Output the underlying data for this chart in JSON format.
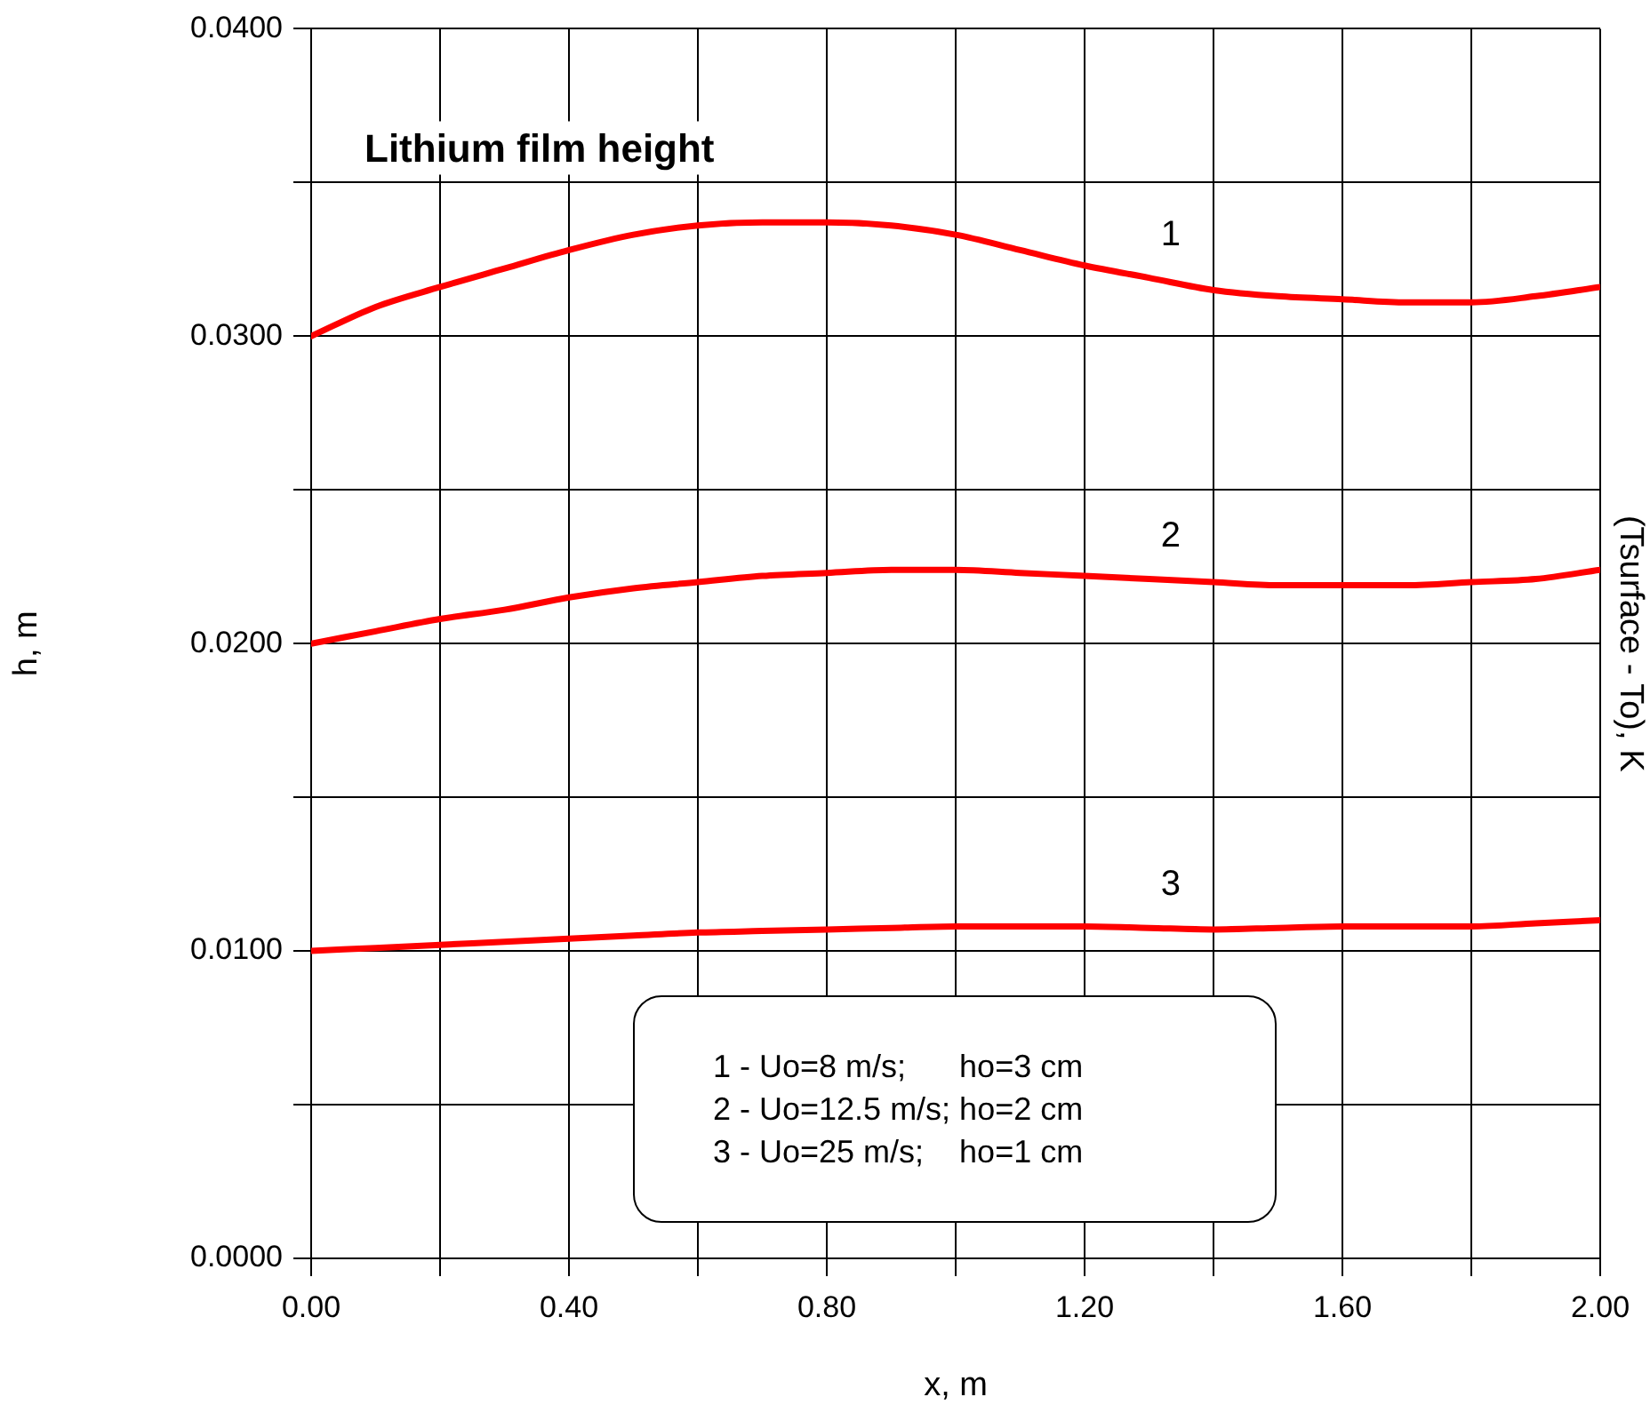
{
  "chart_data": {
    "type": "line",
    "title": "Lithium film height",
    "xlabel": "x, m",
    "ylabel": "h, m",
    "y2label": "(Tsurface - To), K",
    "x": [
      0,
      0.1,
      0.2,
      0.3,
      0.4,
      0.5,
      0.6,
      0.7,
      0.8,
      0.9,
      1.0,
      1.1,
      1.2,
      1.3,
      1.4,
      1.5,
      1.6,
      1.7,
      1.8,
      1.9,
      2.0
    ],
    "series": [
      {
        "name": "1",
        "color": "#ff0000",
        "values": [
          0.03,
          0.03095,
          0.0316,
          0.0322,
          0.0328,
          0.0333,
          0.0336,
          0.0337,
          0.0337,
          0.0336,
          0.0333,
          0.0328,
          0.0323,
          0.0319,
          0.0315,
          0.0313,
          0.0312,
          0.0311,
          0.0311,
          0.0313,
          0.0316
        ]
      },
      {
        "name": "2",
        "color": "#ff0000",
        "values": [
          0.02,
          0.0204,
          0.0208,
          0.0211,
          0.0215,
          0.0218,
          0.022,
          0.0222,
          0.0223,
          0.0224,
          0.0224,
          0.0223,
          0.0222,
          0.0221,
          0.022,
          0.0219,
          0.0219,
          0.0219,
          0.022,
          0.0221,
          0.0224
        ]
      },
      {
        "name": "3",
        "color": "#ff0000",
        "values": [
          0.01,
          0.0101,
          0.0102,
          0.0103,
          0.0104,
          0.0105,
          0.0106,
          0.01065,
          0.0107,
          0.01075,
          0.0108,
          0.0108,
          0.0108,
          0.01075,
          0.0107,
          0.01075,
          0.0108,
          0.0108,
          0.0108,
          0.0109,
          0.011
        ]
      }
    ],
    "xlim": [
      0,
      2.0
    ],
    "ylim": [
      0,
      0.04
    ],
    "xticks": [
      {
        "value": 0,
        "label": "0.00"
      },
      {
        "value": 0.2,
        "label": null
      },
      {
        "value": 0.4,
        "label": "0.40"
      },
      {
        "value": 0.6,
        "label": null
      },
      {
        "value": 0.8,
        "label": "0.80"
      },
      {
        "value": 1.0,
        "label": null
      },
      {
        "value": 1.2,
        "label": "1.20"
      },
      {
        "value": 1.4,
        "label": null
      },
      {
        "value": 1.6,
        "label": "1.60"
      },
      {
        "value": 1.8,
        "label": null
      },
      {
        "value": 2.0,
        "label": "2.00"
      }
    ],
    "yticks": [
      {
        "value": 0,
        "label": "0.0000"
      },
      {
        "value": 0.005,
        "label": null
      },
      {
        "value": 0.01,
        "label": "0.0100"
      },
      {
        "value": 0.015,
        "label": null
      },
      {
        "value": 0.02,
        "label": "0.0200"
      },
      {
        "value": 0.025,
        "label": null
      },
      {
        "value": 0.03,
        "label": "0.0300"
      },
      {
        "value": 0.035,
        "label": null
      },
      {
        "value": 0.04,
        "label": "0.0400"
      }
    ],
    "annotations": [
      "1 - Uo=8 m/s;      ho=3 cm",
      "2 - Uo=12.5 m/s; ho=2 cm",
      "3 - Uo=25 m/s;    ho=1 cm"
    ],
    "grid": true,
    "legend": false,
    "marker": "none",
    "line_style": "solid"
  }
}
